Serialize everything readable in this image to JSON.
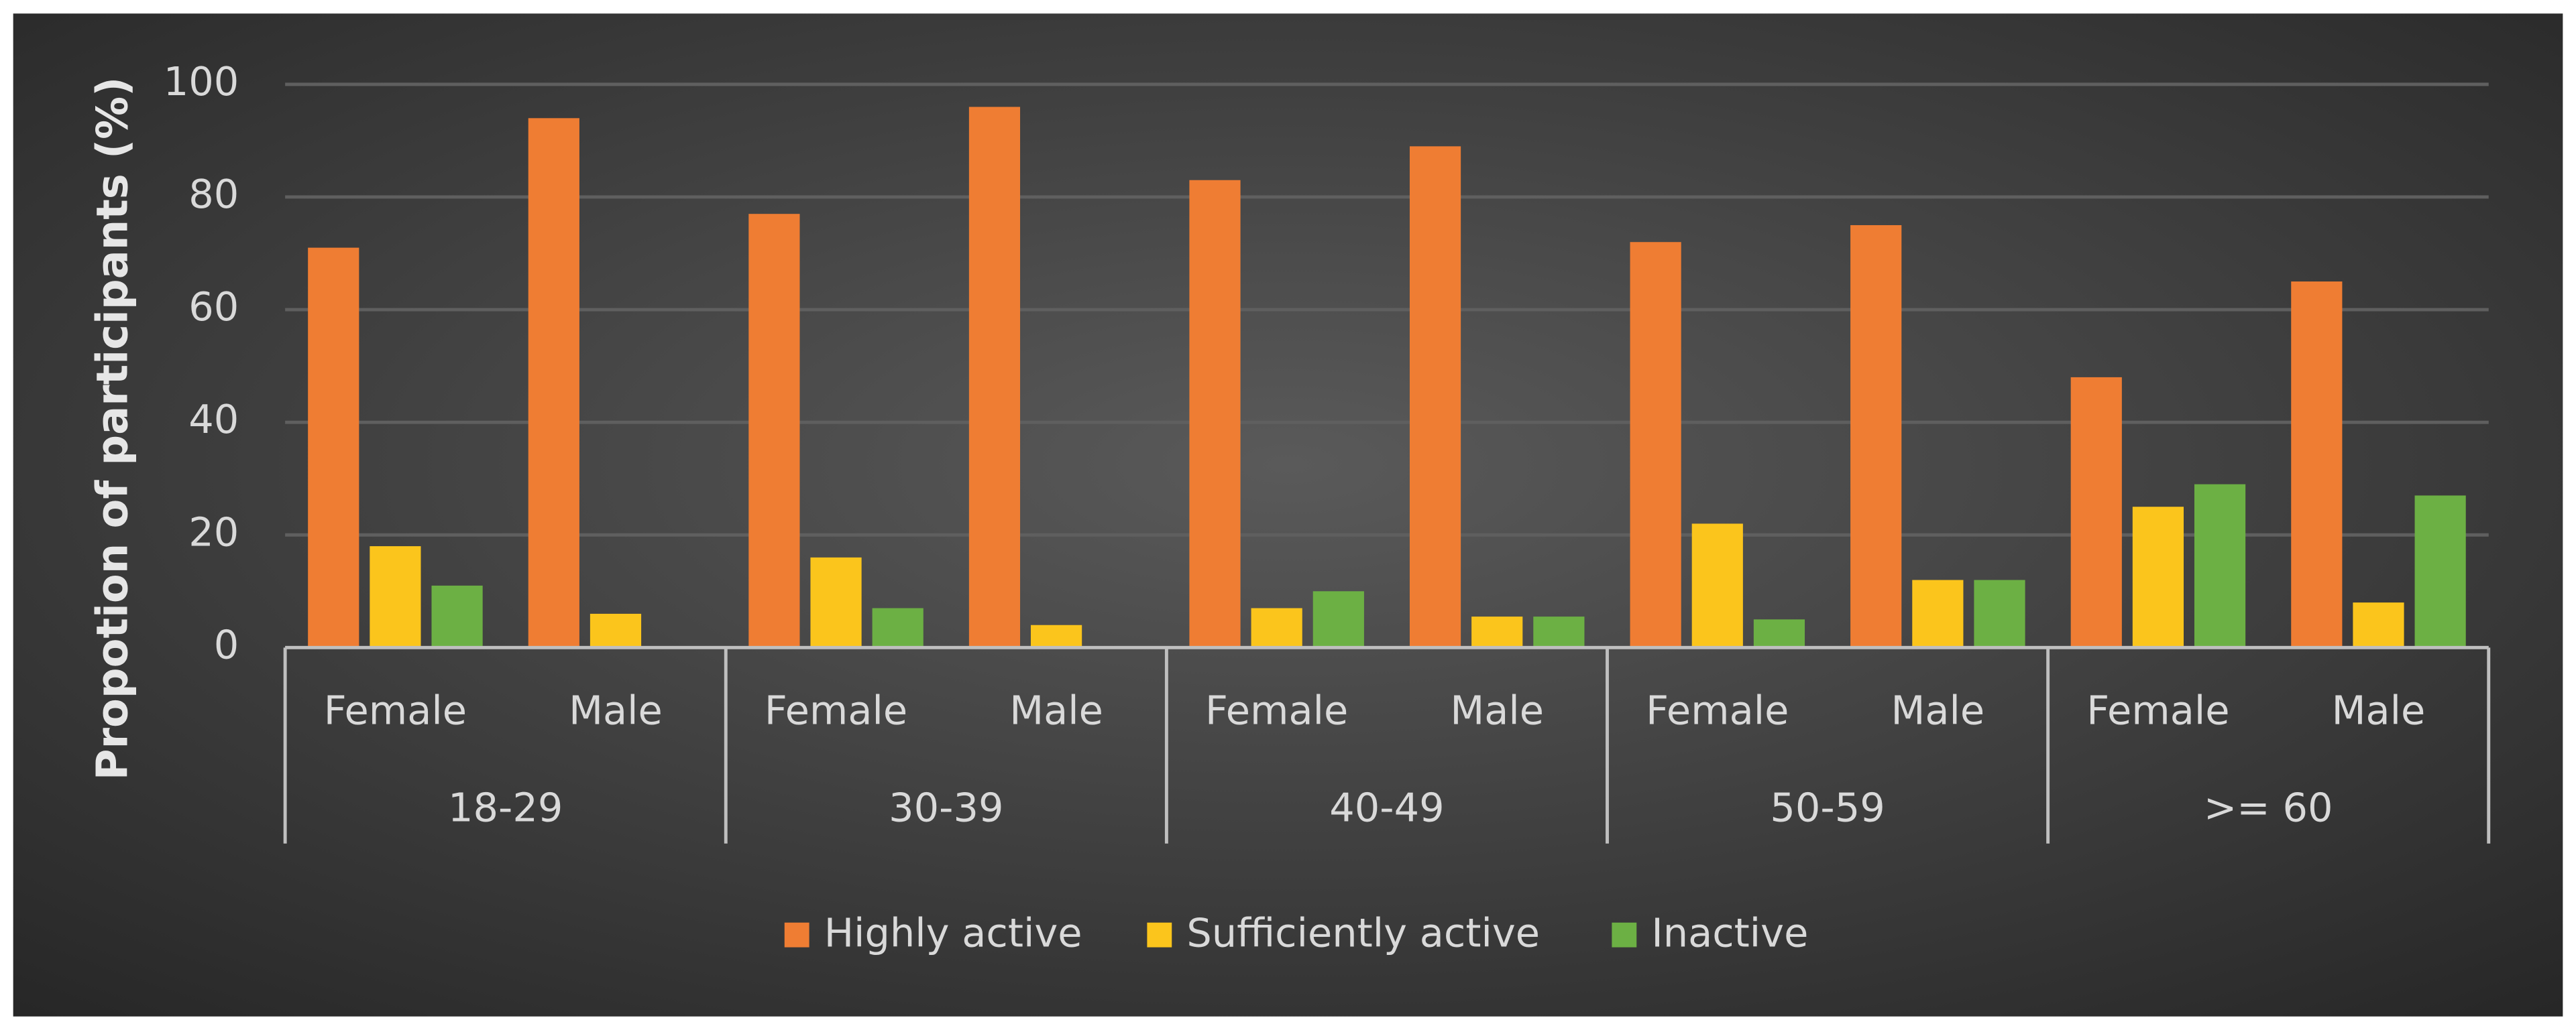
{
  "chart_data": {
    "type": "bar",
    "ylabel": "Propotion of participants (%)",
    "categories": [
      "Female",
      "Male",
      "Female",
      "Male",
      "Female",
      "Male",
      "Female",
      "Male",
      "Female",
      "Male"
    ],
    "groups": [
      "18-29",
      "30-39",
      "40-49",
      "50-59",
      ">= 60"
    ],
    "series": [
      {
        "name": "Highly active",
        "color": "#ef7d33",
        "values": [
          71,
          94,
          77,
          96,
          83,
          89,
          72,
          75,
          48,
          65
        ]
      },
      {
        "name": "Sufficiently active",
        "color": "#fbc51c",
        "values": [
          18,
          6,
          16,
          4,
          7,
          5.5,
          22,
          12,
          25,
          8
        ]
      },
      {
        "name": "Inactive",
        "color": "#6cb044",
        "values": [
          11,
          0,
          7,
          0,
          10,
          5.5,
          5,
          12,
          29,
          27
        ]
      }
    ],
    "ylim": [
      0,
      100
    ],
    "yticks": [
      0,
      20,
      40,
      60,
      80,
      100
    ],
    "grid": true,
    "legend": "bottom"
  }
}
